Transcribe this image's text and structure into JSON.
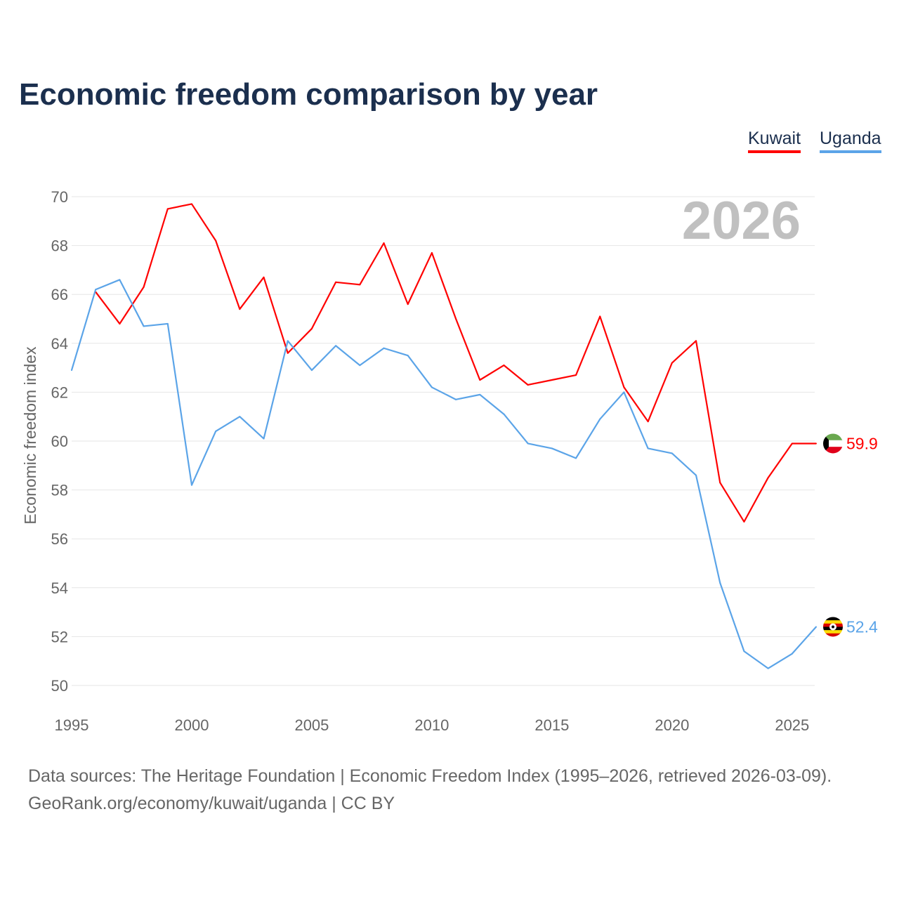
{
  "title": "Economic freedom comparison by year",
  "legend": [
    {
      "name": "Kuwait",
      "color": "#ff0000"
    },
    {
      "name": "Uganda",
      "color": "#5ba4e8"
    }
  ],
  "footer": {
    "line1": "Data sources: The Heritage Foundation | Economic Freedom Index (1995–2026, retrieved 2026-03-09).",
    "line2": "GeoRank.org/economy/kuwait/uganda | CC BY"
  },
  "chart_data": {
    "type": "line",
    "title": "Economic freedom comparison by year",
    "ylabel": "Economic freedom index",
    "xlabel": "",
    "year_label": "2026",
    "ylim": [
      50,
      70
    ],
    "xlim": [
      1995,
      2026
    ],
    "yticks": [
      50,
      52,
      54,
      56,
      58,
      60,
      62,
      64,
      66,
      68,
      70
    ],
    "xticks": [
      1995,
      2000,
      2005,
      2010,
      2015,
      2020,
      2025
    ],
    "grid": true,
    "legend_position": "top-right",
    "series": [
      {
        "name": "Kuwait",
        "color": "#ff0000",
        "end_label": "59.9",
        "flag": "kuwait-flag",
        "x": [
          1996,
          1997,
          1998,
          1999,
          2000,
          2001,
          2002,
          2003,
          2004,
          2005,
          2006,
          2007,
          2008,
          2009,
          2010,
          2011,
          2012,
          2013,
          2014,
          2015,
          2016,
          2017,
          2018,
          2019,
          2020,
          2021,
          2022,
          2023,
          2024,
          2025,
          2026
        ],
        "values": [
          66.1,
          64.8,
          66.3,
          69.5,
          69.7,
          68.2,
          65.4,
          66.7,
          63.6,
          64.6,
          66.5,
          66.4,
          68.1,
          65.6,
          67.7,
          65.0,
          62.5,
          63.1,
          62.3,
          62.5,
          62.7,
          65.1,
          62.2,
          60.8,
          63.2,
          64.1,
          58.3,
          56.7,
          58.5,
          59.9,
          59.9
        ]
      },
      {
        "name": "Uganda",
        "color": "#5ba4e8",
        "end_label": "52.4",
        "flag": "uganda-flag",
        "x": [
          1995,
          1996,
          1997,
          1998,
          1999,
          2000,
          2001,
          2002,
          2003,
          2004,
          2005,
          2006,
          2007,
          2008,
          2009,
          2010,
          2011,
          2012,
          2013,
          2014,
          2015,
          2016,
          2017,
          2018,
          2019,
          2020,
          2021,
          2022,
          2023,
          2024,
          2025,
          2026
        ],
        "values": [
          62.9,
          66.2,
          66.6,
          64.7,
          64.8,
          58.2,
          60.4,
          61.0,
          60.1,
          64.1,
          62.9,
          63.9,
          63.1,
          63.8,
          63.5,
          62.2,
          61.7,
          61.9,
          61.1,
          59.9,
          59.7,
          59.3,
          60.9,
          62.0,
          59.7,
          59.5,
          58.6,
          54.2,
          51.4,
          50.7,
          51.3,
          52.4
        ]
      }
    ]
  }
}
